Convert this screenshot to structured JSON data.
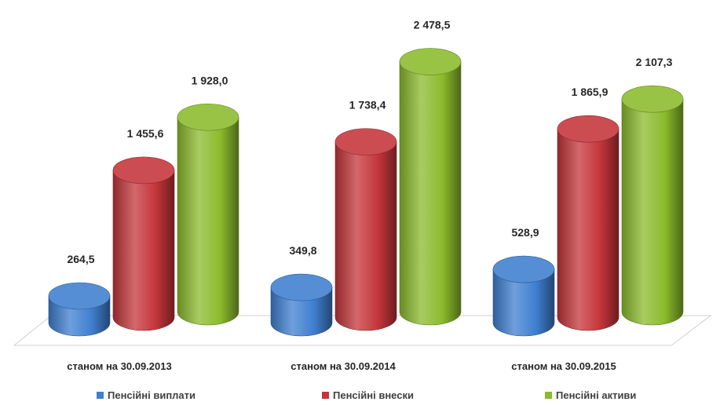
{
  "chart_data": {
    "type": "bar",
    "style": "3d-cylinder",
    "categories": [
      "станом на 30.09.2013",
      "станом на 30.09.2014",
      "станом на 30.09.2015"
    ],
    "series": [
      {
        "name": "Пенсійні виплати",
        "color": "#3f7fd0",
        "values": [
          264.5,
          349.8,
          528.9
        ],
        "labels": [
          "264,5",
          "349,8",
          "528,9"
        ]
      },
      {
        "name": "Пенсійні внески",
        "color": "#c4353a",
        "values": [
          1455.6,
          1738.4,
          1865.9
        ],
        "labels": [
          "1 455,6",
          "1 738,4",
          "1 865,9"
        ]
      },
      {
        "name": "Пенсійні активи",
        "color": "#8bbb2c",
        "values": [
          1928.0,
          2478.5,
          2107.3
        ],
        "labels": [
          "1 928,0",
          "2 478,5",
          "2 107,3"
        ]
      }
    ],
    "data_labels": true,
    "grid": false,
    "legend": "bottom"
  }
}
